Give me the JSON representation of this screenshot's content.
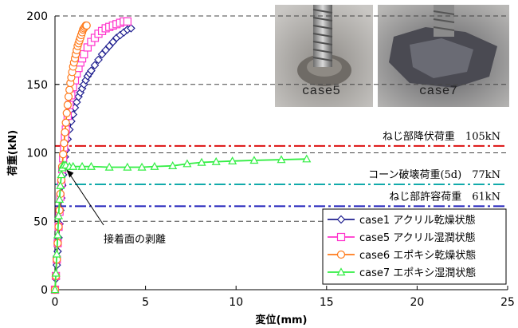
{
  "chart_data": {
    "type": "line",
    "title": "",
    "xlabel": "変位(mm)",
    "ylabel": "荷重(kN)",
    "xlim": [
      0,
      25
    ],
    "ylim": [
      0,
      200
    ],
    "x_ticks": [
      0,
      5,
      10,
      15,
      20,
      25
    ],
    "y_ticks": [
      0,
      50,
      100,
      150,
      200
    ],
    "gridlines": [
      50,
      100,
      150,
      200
    ],
    "legend_position": "bottom-right",
    "series": [
      {
        "name": "case1 アクリル乾燥状態",
        "color": "#1f1f8f",
        "marker": "diamond",
        "x": [
          0,
          0.05,
          0.1,
          0.15,
          0.2,
          0.25,
          0.3,
          0.35,
          0.4,
          0.45,
          0.5,
          0.55,
          0.6,
          0.7,
          0.8,
          0.9,
          1.0,
          1.1,
          1.2,
          1.3,
          1.4,
          1.5,
          1.6,
          1.7,
          1.8,
          1.9,
          2.0,
          2.2,
          2.4,
          2.6,
          2.8,
          3.0,
          3.2,
          3.4,
          3.6,
          3.8,
          4.0,
          4.2
        ],
        "y": [
          0,
          8,
          18,
          28,
          38,
          48,
          58,
          67,
          76,
          84,
          91,
          97,
          102,
          110,
          117,
          123,
          128,
          133,
          137,
          141,
          144,
          147,
          150,
          153,
          156,
          158,
          160,
          164,
          168,
          172,
          175,
          178,
          181,
          184,
          186,
          188,
          190,
          191
        ]
      },
      {
        "name": "case5 アクリル湿潤状態",
        "color": "#ff33cc",
        "marker": "square",
        "x": [
          0,
          0.05,
          0.1,
          0.15,
          0.2,
          0.25,
          0.3,
          0.35,
          0.4,
          0.45,
          0.5,
          0.55,
          0.6,
          0.7,
          0.8,
          0.9,
          1.0,
          1.1,
          1.2,
          1.3,
          1.4,
          1.5,
          1.6,
          1.8,
          2.0,
          2.2,
          2.4,
          2.6,
          2.8,
          3.0,
          3.2,
          3.4,
          3.6,
          3.8,
          4.0
        ],
        "y": [
          0,
          10,
          22,
          34,
          46,
          57,
          68,
          78,
          88,
          96,
          104,
          111,
          117,
          127,
          135,
          142,
          148,
          153,
          158,
          162,
          166,
          169,
          172,
          177,
          181,
          184,
          187,
          189,
          191,
          192,
          193,
          194,
          195,
          196,
          196
        ]
      },
      {
        "name": "case6 エポキシ乾燥状態",
        "color": "#ff7a1a",
        "marker": "circle",
        "x": [
          0,
          0.05,
          0.1,
          0.15,
          0.2,
          0.25,
          0.3,
          0.35,
          0.4,
          0.45,
          0.5,
          0.55,
          0.6,
          0.65,
          0.7,
          0.75,
          0.8,
          0.85,
          0.9,
          0.95,
          1.0,
          1.05,
          1.1,
          1.15,
          1.2,
          1.25,
          1.3,
          1.35,
          1.4,
          1.45,
          1.5,
          1.55,
          1.6,
          1.65,
          1.7,
          1.75
        ],
        "y": [
          0,
          10,
          22,
          34,
          46,
          58,
          70,
          80,
          90,
          99,
          107,
          115,
          122,
          129,
          135,
          141,
          146,
          151,
          155,
          159,
          163,
          166,
          169,
          172,
          175,
          178,
          180,
          182,
          184,
          186,
          188,
          190,
          191,
          192,
          193,
          193
        ]
      },
      {
        "name": "case7 エポキシ湿潤状態",
        "color": "#33ee44",
        "marker": "triangle",
        "x": [
          0,
          0.05,
          0.1,
          0.15,
          0.2,
          0.25,
          0.3,
          0.35,
          0.4,
          0.45,
          0.5,
          0.6,
          0.8,
          1.0,
          1.5,
          2.0,
          3.0,
          4.0,
          4.8,
          5.5,
          6.5,
          7.3,
          8.1,
          8.9,
          9.8,
          11.0,
          12.5,
          13.9
        ],
        "y": [
          0,
          12,
          26,
          40,
          54,
          66,
          76,
          84,
          89,
          91,
          91,
          91,
          90,
          90,
          90,
          90,
          89.5,
          89.5,
          89.5,
          90,
          90.5,
          92,
          93,
          93.5,
          94,
          94.5,
          95,
          95.5
        ]
      }
    ],
    "reference_lines": [
      {
        "label": "ねじ部降伏荷重　105kN",
        "value": 105,
        "color": "#dd1111",
        "style": "dashdot"
      },
      {
        "label": "コーン破壊荷重(5d)　77kN",
        "value": 77,
        "color": "#11aaaa",
        "style": "dashdot"
      },
      {
        "label": "ねじ部許容荷重　61kN",
        "value": 61,
        "color": "#2222bb",
        "style": "dashdot"
      }
    ],
    "annotation": {
      "text": "接着面の剥離",
      "x": 0.5,
      "y": 90
    },
    "photos": [
      {
        "label": "case5"
      },
      {
        "label": "case7"
      }
    ]
  }
}
